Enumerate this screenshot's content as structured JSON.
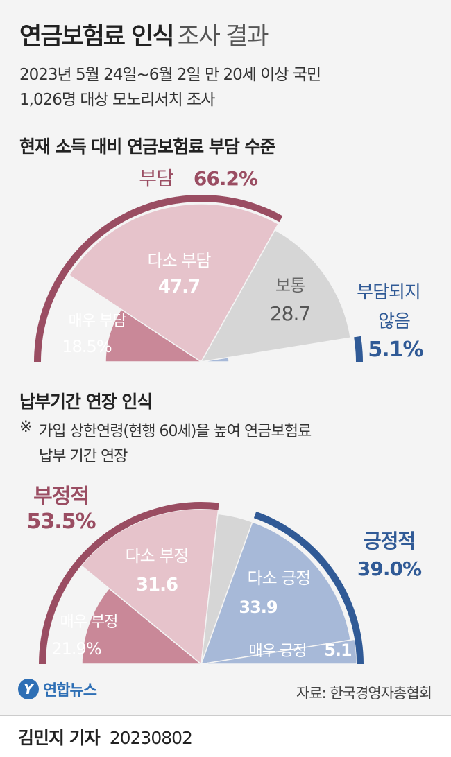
{
  "header": {
    "title_bold": "연금보험료 인식",
    "title_light": "조사 결과",
    "subtitle_line1": "2023년 5월 24일~6월 2일 만 20세 이상 국민",
    "subtitle_line2": "1,026명 대상 모노리서치 조사"
  },
  "chart_data": [
    {
      "type": "pie",
      "title": "현재 소득 대비 연금보험료 부담 수준",
      "unit": "%",
      "slices": [
        {
          "label": "매우 부담",
          "value": 18.5,
          "display": "18.5%",
          "color": "#c98898"
        },
        {
          "label": "다소 부담",
          "value": 47.7,
          "display": "47.7",
          "color": "#e6c3cb"
        },
        {
          "label": "보통",
          "value": 28.7,
          "display": "28.7",
          "color": "#d6d6d6"
        },
        {
          "label": "부담되지 않음",
          "value": 5.1,
          "display": "5.1%",
          "color": "#a7b9d8"
        }
      ],
      "groups": [
        {
          "label": "부담",
          "value": 66.2,
          "display": "66.2%",
          "color": "#9a4d62",
          "slices": [
            0,
            1
          ]
        },
        {
          "label": "부담되지 않음",
          "value": 5.1,
          "display": "5.1%",
          "color": "#305a96",
          "slices": [
            3
          ]
        }
      ]
    },
    {
      "type": "pie",
      "title": "납부기간 연장 인식",
      "note_line1": "가입 상한연령(현행 60세)을 높여 연금보험료",
      "note_line2": "납부 기간 연장",
      "note_mark": "※",
      "unit": "%",
      "slices": [
        {
          "label": "매우 부정",
          "value": 21.9,
          "display": "21.9%",
          "color": "#c98898"
        },
        {
          "label": "다소 부정",
          "value": 31.6,
          "display": "31.6",
          "color": "#e6c3cb"
        },
        {
          "label": "",
          "value": 7.5,
          "display": "",
          "color": "#d6d6d6"
        },
        {
          "label": "다소 긍정",
          "value": 33.9,
          "display": "33.9",
          "color": "#a7b9d8"
        },
        {
          "label": "매우 긍정",
          "value": 5.1,
          "display": "5.1",
          "color": "#a7b9d8"
        }
      ],
      "groups": [
        {
          "label": "부정적",
          "value": 53.5,
          "display": "53.5%",
          "color": "#9a4d62",
          "slices": [
            0,
            1
          ]
        },
        {
          "label": "긍정적",
          "value": 39.0,
          "display": "39.0%",
          "color": "#305a96",
          "slices": [
            3,
            4
          ]
        }
      ]
    }
  ],
  "footer": {
    "logo_mark": "Y",
    "logo_text": "연합뉴스",
    "source": "자료: 한국경영자총협회",
    "reporter": "김민지 기자",
    "date": "20230802"
  }
}
